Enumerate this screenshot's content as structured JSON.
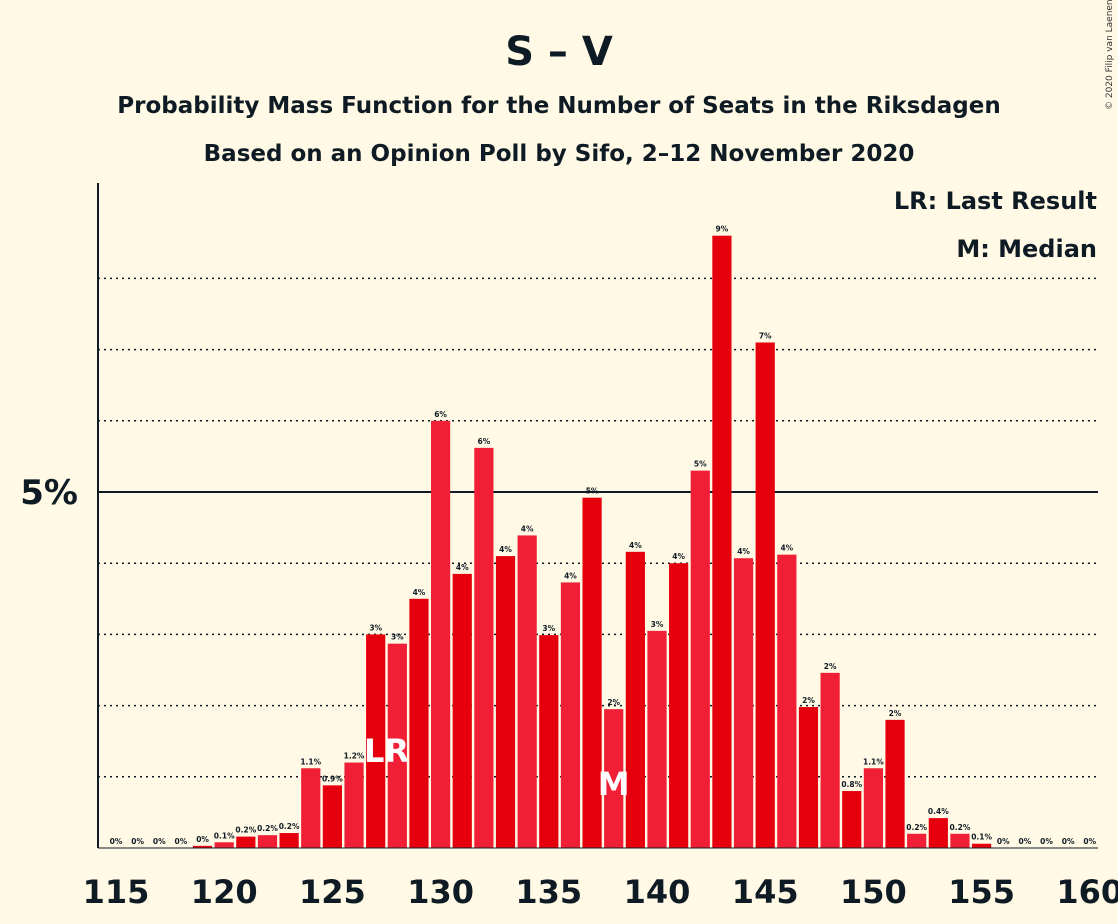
{
  "chart_data": {
    "type": "bar",
    "title": "S – V",
    "subtitle": "Probability Mass Function for the Number of Seats in the Riksdagen",
    "subtitle2": "Based on an Opinion Poll by Sifo, 2–12 November 2020",
    "copyright": "© 2020 Filip van Laenen",
    "legend": {
      "lr": "LR: Last Result",
      "m": "M: Median",
      "placement": "top-right"
    },
    "y_tick_label": "5%",
    "y_tick_value": 5,
    "ylim": [
      0,
      9.4
    ],
    "minor_grid": [
      1,
      2,
      3,
      4,
      6,
      7,
      8
    ],
    "x_ticks": [
      115,
      120,
      125,
      130,
      135,
      140,
      145,
      150,
      155,
      160
    ],
    "seats": [
      115,
      116,
      117,
      118,
      119,
      120,
      121,
      122,
      123,
      124,
      125,
      126,
      127,
      128,
      129,
      130,
      131,
      132,
      133,
      134,
      135,
      136,
      137,
      138,
      139,
      140,
      141,
      142,
      143,
      144,
      145,
      146,
      147,
      148,
      149,
      150,
      151,
      152,
      153,
      154,
      155,
      156,
      157,
      158,
      159,
      160
    ],
    "values": [
      0,
      0,
      0,
      0,
      0.03,
      0.08,
      0.16,
      0.18,
      0.21,
      1.12,
      0.88,
      1.2,
      3.0,
      2.87,
      3.5,
      6.0,
      3.85,
      5.62,
      4.1,
      4.39,
      2.99,
      3.73,
      4.92,
      1.95,
      4.16,
      3.05,
      4.0,
      5.3,
      8.6,
      4.07,
      7.1,
      4.12,
      1.98,
      2.46,
      0.8,
      1.12,
      1.8,
      0.2,
      0.42,
      0.2,
      0.06,
      0,
      0,
      0,
      0,
      0
    ],
    "labels": [
      "0%",
      "0%",
      "0%",
      "0%",
      "0%",
      "0.1%",
      "0.2%",
      "0.2%",
      "0.2%",
      "1.1%",
      "0.9%",
      "1.2%",
      "3%",
      "3%",
      "4%",
      "6%",
      "4%",
      "6%",
      "4%",
      "4%",
      "3%",
      "4%",
      "5%",
      "2%",
      "4%",
      "3%",
      "4%",
      "5%",
      "9%",
      "4%",
      "7%",
      "4%",
      "2%",
      "2%",
      "0.8%",
      "1.1%",
      "2%",
      "0.2%",
      "0.4%",
      "0.2%",
      "0.1%",
      "0%",
      "0%",
      "0%",
      "0%",
      "0%"
    ],
    "last_result_seat": 128,
    "last_result_marker": "LR",
    "median_seat": 138,
    "median_marker": "M",
    "colors": {
      "odd": "#E6000E",
      "even": "#F01F36",
      "background": "#FFF9E5",
      "text": "#0F1B24"
    }
  }
}
